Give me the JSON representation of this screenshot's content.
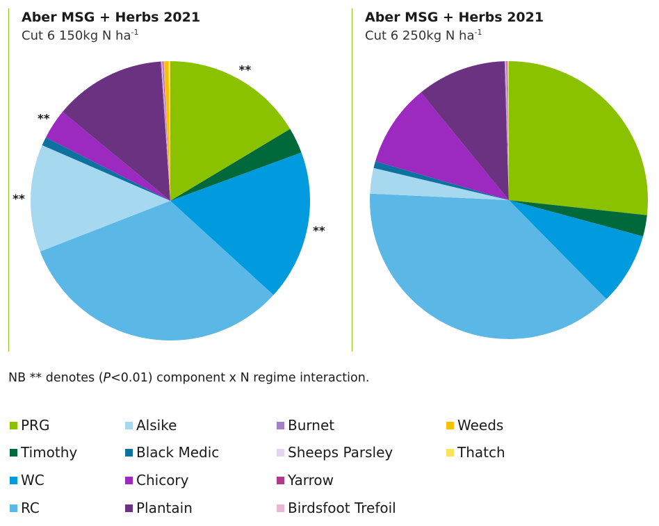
{
  "chart_data": [
    {
      "type": "pie",
      "title": "Aber MSG + Herbs 2021",
      "subtitle": "Cut 6 150kg N ha",
      "subtitle_sup": "-1",
      "slices": [
        {
          "name": "PRG",
          "value": 16.5,
          "color": "#8bc200",
          "annotation": "**"
        },
        {
          "name": "Timothy",
          "value": 3.0,
          "color": "#00693c",
          "annotation": ""
        },
        {
          "name": "WC",
          "value": 17.5,
          "color": "#009ade",
          "annotation": "**"
        },
        {
          "name": "RC",
          "value": 32.5,
          "color": "#5bb7e6",
          "annotation": ""
        },
        {
          "name": "Alsike",
          "value": 12.5,
          "color": "#a6d8f0",
          "annotation": "**"
        },
        {
          "name": "Black Medic",
          "value": 1.0,
          "color": "#0e72a0",
          "annotation": ""
        },
        {
          "name": "Chicory",
          "value": 3.5,
          "color": "#9c2ac0",
          "annotation": "**"
        },
        {
          "name": "Plantain",
          "value": 13.0,
          "color": "#6c3282",
          "annotation": ""
        },
        {
          "name": "Burnet",
          "value": 0.1,
          "color": "#a57fcc",
          "annotation": ""
        },
        {
          "name": "Sheeps Parsley",
          "value": 0.1,
          "color": "#e2d4f2",
          "annotation": ""
        },
        {
          "name": "Yarrow",
          "value": 0.1,
          "color": "#b0398a",
          "annotation": ""
        },
        {
          "name": "Birdsfoot Trefoil",
          "value": 0.1,
          "color": "#e6b8d4",
          "annotation": ""
        },
        {
          "name": "Weeds",
          "value": 0.5,
          "color": "#f3c200",
          "annotation": ""
        },
        {
          "name": "Thatch",
          "value": 0.2,
          "color": "#fbe35a",
          "annotation": ""
        }
      ]
    },
    {
      "type": "pie",
      "title": "Aber MSG + Herbs 2021",
      "subtitle": "Cut 6 250kg N ha",
      "subtitle_sup": "-1",
      "slices": [
        {
          "name": "PRG",
          "value": 27.0,
          "color": "#8bc200",
          "annotation": ""
        },
        {
          "name": "Timothy",
          "value": 2.5,
          "color": "#00693c",
          "annotation": ""
        },
        {
          "name": "WC",
          "value": 8.5,
          "color": "#009ade",
          "annotation": ""
        },
        {
          "name": "RC",
          "value": 38.5,
          "color": "#5bb7e6",
          "annotation": ""
        },
        {
          "name": "Alsike",
          "value": 3.0,
          "color": "#a6d8f0",
          "annotation": ""
        },
        {
          "name": "Black Medic",
          "value": 0.8,
          "color": "#0e72a0",
          "annotation": ""
        },
        {
          "name": "Chicory",
          "value": 9.7,
          "color": "#9c2ac0",
          "annotation": ""
        },
        {
          "name": "Plantain",
          "value": 10.5,
          "color": "#6c3282",
          "annotation": ""
        },
        {
          "name": "Burnet",
          "value": 0.1,
          "color": "#a57fcc",
          "annotation": ""
        },
        {
          "name": "Sheeps Parsley",
          "value": 0.1,
          "color": "#e2d4f2",
          "annotation": ""
        },
        {
          "name": "Yarrow",
          "value": 0.1,
          "color": "#b0398a",
          "annotation": ""
        },
        {
          "name": "Birdsfoot Trefoil",
          "value": 0.1,
          "color": "#e6b8d4",
          "annotation": ""
        },
        {
          "name": "Weeds",
          "value": 0.05,
          "color": "#f3c200",
          "annotation": ""
        },
        {
          "name": "Thatch",
          "value": 0.05,
          "color": "#fbe35a",
          "annotation": ""
        }
      ]
    }
  ],
  "note": {
    "prefix": "NB ** denotes (",
    "p": "P",
    "suffix": "<0.01) component x N regime interaction."
  },
  "legend": [
    {
      "name": "PRG",
      "color": "#8bc200"
    },
    {
      "name": "Timothy",
      "color": "#00693c"
    },
    {
      "name": "WC",
      "color": "#009ade"
    },
    {
      "name": "RC",
      "color": "#5bb7e6"
    },
    {
      "name": "Alsike",
      "color": "#a6d8f0"
    },
    {
      "name": "Black Medic",
      "color": "#0e72a0"
    },
    {
      "name": "Chicory",
      "color": "#9c2ac0"
    },
    {
      "name": "Plantain",
      "color": "#6c3282"
    },
    {
      "name": "Burnet",
      "color": "#a57fcc"
    },
    {
      "name": "Sheeps Parsley",
      "color": "#e2d4f2"
    },
    {
      "name": "Yarrow",
      "color": "#b0398a"
    },
    {
      "name": "Birdsfoot Trefoil",
      "color": "#e6b8d4"
    },
    {
      "name": "Weeds",
      "color": "#f3c200"
    },
    {
      "name": "Thatch",
      "color": "#fbe35a"
    }
  ]
}
